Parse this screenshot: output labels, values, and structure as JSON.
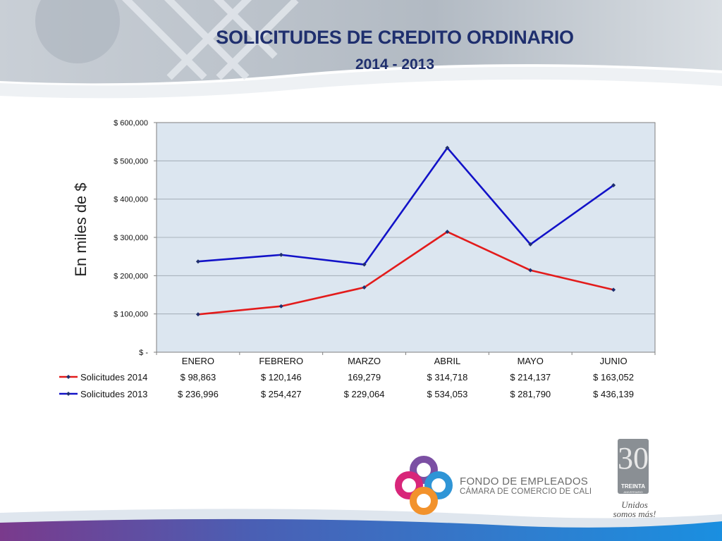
{
  "header": {
    "title": "SOLICITUDES DE CREDITO ORDINARIO",
    "subtitle": "2014 - 2013"
  },
  "colors": {
    "title": "#1f2f6e",
    "plot_bg": "#dce6f0",
    "series_2014": "#e31b1b",
    "series_2013": "#1212c8",
    "marker": "#1f2f6e"
  },
  "chart_data": {
    "type": "line",
    "title": "SOLICITUDES DE CREDITO ORDINARIO",
    "subtitle": "2014 - 2013",
    "ylabel": "En miles de $",
    "xlabel": "",
    "categories": [
      "ENERO",
      "FEBRERO",
      "MARZO",
      "ABRIL",
      "MAYO",
      "JUNIO"
    ],
    "ylim": [
      0,
      600000
    ],
    "yticks": [
      0,
      100000,
      200000,
      300000,
      400000,
      500000,
      600000
    ],
    "ytick_labels": [
      "$ -",
      "$ 100,000",
      "$ 200,000",
      "$ 300,000",
      "$ 400,000",
      "$ 500,000",
      "$ 600,000"
    ],
    "grid": true,
    "legend": "data-table",
    "series": [
      {
        "name": "Solicitudes 2014",
        "color": "#e31b1b",
        "values": [
          98863,
          120146,
          169279,
          314718,
          214137,
          163052
        ],
        "labels": [
          "$ 98,863",
          "$ 120,146",
          "169,279",
          "$ 314,718",
          "$ 214,137",
          "$ 163,052"
        ]
      },
      {
        "name": "Solicitudes 2013",
        "color": "#1212c8",
        "values": [
          236996,
          254427,
          229064,
          534053,
          281790,
          436139
        ],
        "labels": [
          "$ 236,996",
          "$ 254,427",
          "$ 229,064",
          "$ 534,053",
          "$ 281,790",
          "$ 436,139"
        ]
      }
    ]
  },
  "logo": {
    "line1": "FONDO DE EMPLEADOS",
    "line2": "CÁMARA DE COMERCIO DE CALI"
  },
  "badge": {
    "number": "30",
    "label": "TREINTA",
    "sub": "ANIVERSARIO",
    "slogan": "Unidos somos más!"
  }
}
